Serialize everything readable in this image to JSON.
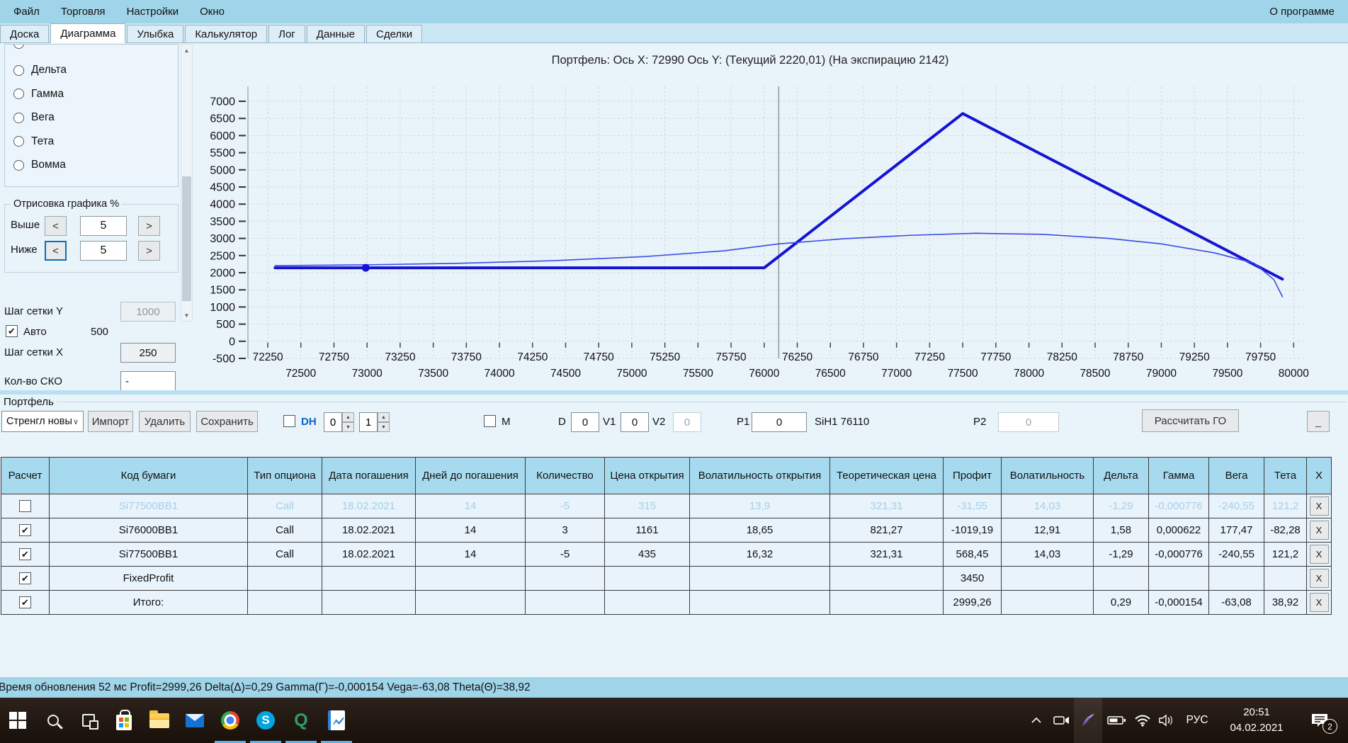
{
  "menu": {
    "items": [
      "Файл",
      "Торговля",
      "Настройки",
      "Окно"
    ],
    "right_label": "О программе"
  },
  "tabs": {
    "items": [
      {
        "label": "Доска",
        "active": false
      },
      {
        "label": "Диаграмма",
        "active": true
      },
      {
        "label": "Улыбка",
        "active": false
      },
      {
        "label": "Калькулятор",
        "active": false
      },
      {
        "label": "Лог",
        "active": false
      },
      {
        "label": "Данные",
        "active": false
      },
      {
        "label": "Сделки",
        "active": false
      }
    ]
  },
  "icons": {
    "scroll_up": "▲",
    "scroll_down": "▼",
    "combo_arrow": "∨",
    "spin_up": "▲",
    "spin_down": "▼",
    "check": "✔"
  },
  "sidebar": {
    "greeks": [
      "Дельта",
      "Гамма",
      "Вега",
      "Тета",
      "Вомма"
    ],
    "draw_group": {
      "title": "Отрисовка графика %",
      "above_label": "Выше",
      "below_label": "Ниже",
      "above_value": "5",
      "below_value": "5",
      "dec_label": "<",
      "inc_label": ">"
    },
    "grid_y_label": "Шаг сетки Y",
    "grid_y_value": "1000",
    "auto_label": "Авто",
    "auto_value": "500",
    "grid_x_label": "Шаг сетки X",
    "grid_x_value": "250",
    "sko_label": "Кол-во СКО",
    "sko_value": "-"
  },
  "chart_data": {
    "type": "line",
    "title": "Портфель: Ось X: 72990 Ось Y:  (Текущий 2220,01)  (На экспирацию 2142)",
    "xlabel": "",
    "ylabel": "",
    "xlim": [
      72100,
      80100
    ],
    "ylim": [
      -500,
      7000
    ],
    "x_ticks_start": 72250,
    "x_ticks_step": 250,
    "x_ticks_end": 80000,
    "y_ticks_start": -500,
    "y_ticks_step": 500,
    "y_ticks_end": 7000,
    "grid": true,
    "legend_position": "none",
    "series": [
      {
        "name": "На экспирацию",
        "color": "#1414d2",
        "width": 4,
        "points": [
          [
            72305,
            2142
          ],
          [
            76000,
            2142
          ],
          [
            77500,
            6642
          ],
          [
            79915,
            1812
          ]
        ]
      },
      {
        "name": "Текущий",
        "color": "#3a4ae6",
        "width": 1.6,
        "points": [
          [
            72305,
            2205
          ],
          [
            73000,
            2230
          ],
          [
            73700,
            2275
          ],
          [
            74400,
            2350
          ],
          [
            75100,
            2470
          ],
          [
            75700,
            2640
          ],
          [
            76110,
            2840
          ],
          [
            76600,
            2990
          ],
          [
            77100,
            3090
          ],
          [
            77600,
            3150
          ],
          [
            78100,
            3120
          ],
          [
            78600,
            3000
          ],
          [
            79000,
            2840
          ],
          [
            79400,
            2580
          ],
          [
            79700,
            2280
          ],
          [
            79850,
            1800
          ],
          [
            79915,
            1300
          ]
        ]
      }
    ],
    "marker": {
      "x": 72990,
      "y": 2142,
      "color": "#1414d2"
    },
    "vline": {
      "x": 76110,
      "color": "#8f979c"
    }
  },
  "portfolio": {
    "group_label": "Портфель",
    "preset_value": "Стренгл новы",
    "import_label": "Импорт",
    "delete_label": "Удалить",
    "save_label": "Сохранить",
    "dh_label": "DH",
    "spin1_value": "0",
    "spin2_value": "1",
    "m_label": "M",
    "d_label": "D",
    "d_value": "0",
    "v1_label": "V1",
    "v1_value": "0",
    "v2_label": "V2",
    "v2_value": "0",
    "p1_label": "P1",
    "p1_value": "0",
    "instrument_label": "SiH1 76110",
    "p2_label": "P2",
    "p2_value": "0",
    "calc_go_label": "Рассчитать ГО",
    "collapse_label": "_"
  },
  "table": {
    "headers": [
      "Расчет",
      "Код бумаги",
      "Тип опциона",
      "Дата погашения",
      "Дней до погашения",
      "Количество",
      "Цена открытия",
      "Волатильность открытия",
      "Теоретическая цена",
      "Профит",
      "Волатильность",
      "Дельта",
      "Гамма",
      "Вега",
      "Тета",
      "X"
    ],
    "x_button_label": "X",
    "rows": [
      {
        "selected": true,
        "checked": false,
        "faded": true,
        "profit_state": "negative",
        "cells": [
          "Si77500BB1",
          "Call",
          "18.02.2021",
          "14",
          "-5",
          "315",
          "13,9",
          "321,31",
          "-31,55",
          "14,03",
          "-1,29",
          "-0,000776",
          "-240,55",
          "121,2"
        ]
      },
      {
        "selected": false,
        "checked": true,
        "faded": false,
        "profit_state": "negative",
        "cells": [
          "Si76000BB1",
          "Call",
          "18.02.2021",
          "14",
          "3",
          "1161",
          "18,65",
          "821,27",
          "-1019,19",
          "12,91",
          "1,58",
          "0,000622",
          "177,47",
          "-82,28"
        ]
      },
      {
        "selected": false,
        "checked": true,
        "faded": false,
        "profit_state": "positive",
        "cells": [
          "Si77500BB1",
          "Call",
          "18.02.2021",
          "14",
          "-5",
          "435",
          "16,32",
          "321,31",
          "568,45",
          "14,03",
          "-1,29",
          "-0,000776",
          "-240,55",
          "121,2"
        ]
      },
      {
        "selected": false,
        "checked": true,
        "faded": false,
        "profit_state": "positive",
        "cells": [
          "FixedProfit",
          "",
          "",
          "",
          "",
          "",
          "",
          "",
          "3450",
          "",
          "",
          "",
          "",
          ""
        ]
      },
      {
        "selected": false,
        "checked": true,
        "faded": false,
        "profit_state": "positive",
        "cells": [
          "Итого:",
          "",
          "",
          "",
          "",
          "",
          "",
          "",
          "2999,26",
          "",
          "0,29",
          "-0,000154",
          "-63,08",
          "38,92"
        ]
      }
    ]
  },
  "status_bar": {
    "text": "Время обновления 52 мс  Profit=2999,26 Delta(Δ)=0,29 Gamma(Γ)=-0,000154 Vega=-63,08 Theta(Θ)=38,92"
  },
  "taskbar": {
    "apps": [
      {
        "name": "start",
        "running": false
      },
      {
        "name": "search",
        "running": false
      },
      {
        "name": "task-view",
        "running": false
      },
      {
        "name": "store",
        "running": false
      },
      {
        "name": "file-explorer",
        "running": false
      },
      {
        "name": "mail",
        "running": false
      },
      {
        "name": "chrome",
        "running": true
      },
      {
        "name": "skype",
        "running": true
      },
      {
        "name": "quik",
        "running": true
      },
      {
        "name": "trading-app",
        "running": true
      }
    ],
    "tray": {
      "lang": "РУС",
      "time": "20:51",
      "date": "04.02.2021",
      "notification_badge": "2"
    }
  },
  "colors": {
    "menubar_bg": "#a0d4e9",
    "panel_bg": "#e9f3fa",
    "table_header_bg": "#a7daee",
    "selected_cell_bg": "#1266c0",
    "profit_positive_bg": "#8fdf92",
    "profit_negative_bg": "#f3afbd",
    "expiration_line": "#1414d2",
    "current_line": "#3a4ae6"
  }
}
